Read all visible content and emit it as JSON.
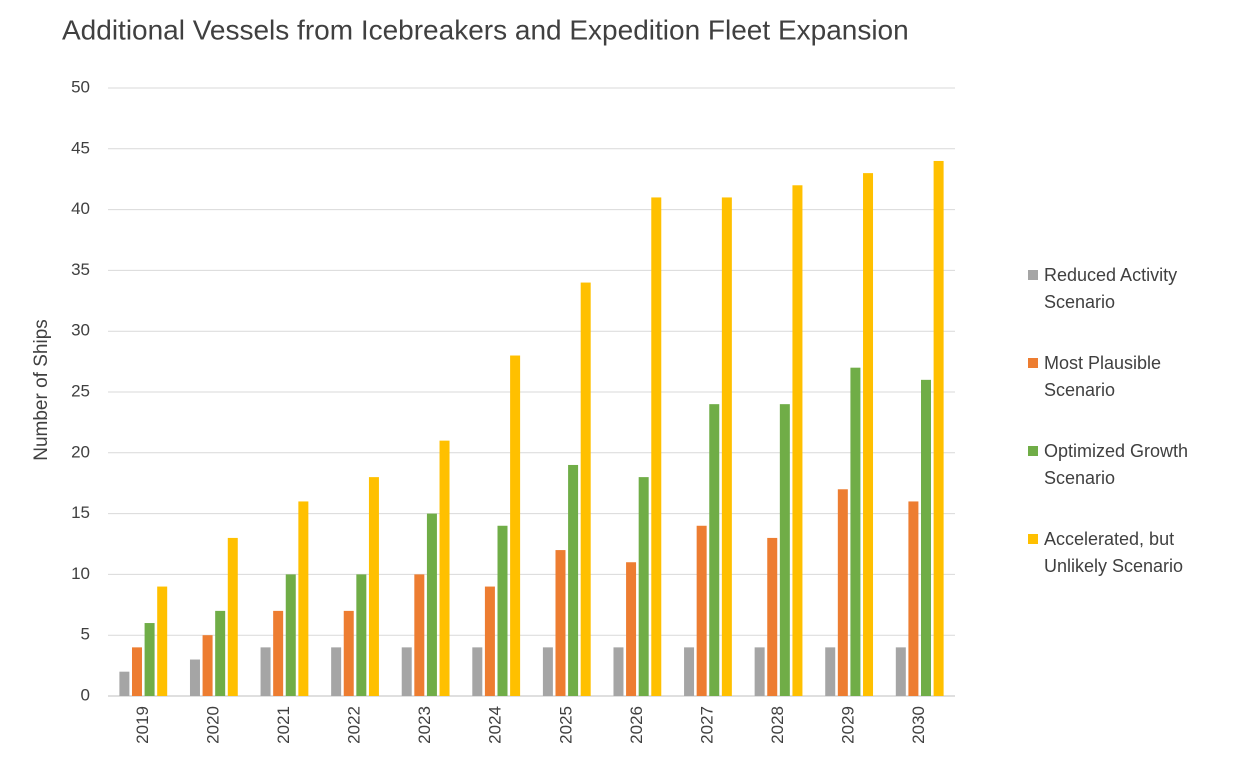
{
  "chart_data": {
    "type": "bar",
    "title": "Additional Vessels from Icebreakers and Expedition Fleet Expansion",
    "y_label": "Number of Ships",
    "categories": [
      "2019",
      "2020",
      "2021",
      "2022",
      "2023",
      "2024",
      "2025",
      "2026",
      "2027",
      "2028",
      "2029",
      "2030"
    ],
    "series": [
      {
        "name": "Reduced Activity Scenario",
        "color": "#a5a5a5",
        "values": [
          2,
          3,
          4,
          4,
          4,
          4,
          4,
          4,
          4,
          4,
          4,
          4
        ]
      },
      {
        "name": "Most Plausible Scenario",
        "color": "#ed7d31",
        "values": [
          4,
          5,
          7,
          7,
          10,
          9,
          12,
          11,
          14,
          13,
          17,
          16
        ]
      },
      {
        "name": "Optimized Growth Scenario",
        "color": "#70ad47",
        "values": [
          6,
          7,
          10,
          10,
          15,
          14,
          19,
          18,
          24,
          24,
          27,
          26
        ]
      },
      {
        "name": "Accelerated, but Unlikely Scenario",
        "color": "#ffc000",
        "values": [
          9,
          13,
          16,
          18,
          21,
          28,
          34,
          41,
          41,
          42,
          43,
          44
        ]
      }
    ],
    "ylim": [
      0,
      50
    ],
    "yticks": [
      0,
      5,
      10,
      15,
      20,
      25,
      30,
      35,
      40,
      45,
      50
    ],
    "grid": true,
    "legend": "right"
  }
}
